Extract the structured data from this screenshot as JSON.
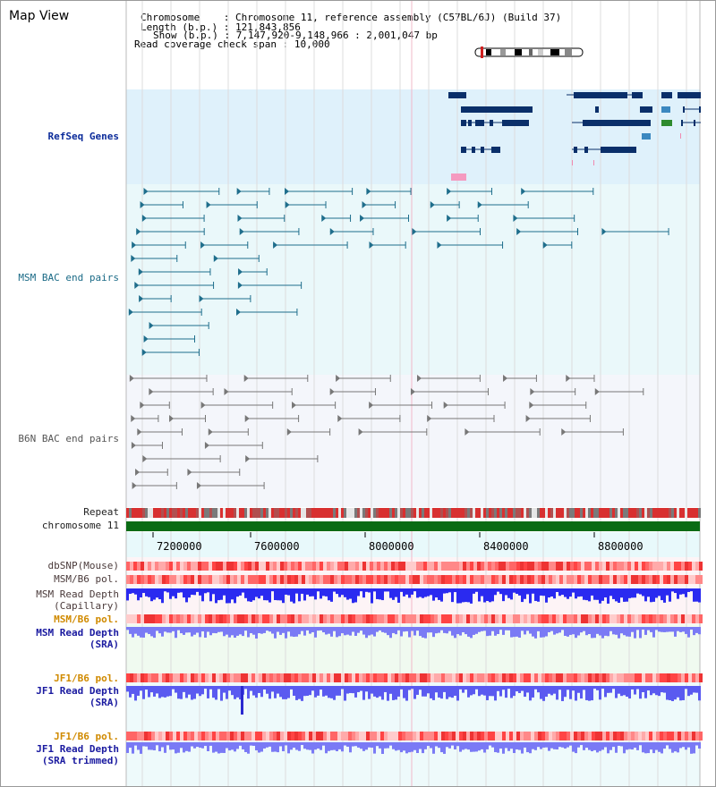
{
  "header": {
    "title": "Map View",
    "chromosome_key": "Chromosome",
    "chromosome_value": "Chromosome 11, reference assembly (C57BL/6J) (Build 37)",
    "length_key": "Length (b.p.)",
    "length_value": "121,843,856",
    "show_key": "Show (b.p.)",
    "show_value": "7,147,920-9,148,966 : 2,001,047 bp",
    "coverage_key": "Read coverage check span",
    "coverage_value": "10,000"
  },
  "tracks": {
    "refseq": "RefSeq Genes",
    "msm_bac": "MSM BAC end pairs",
    "b6n_bac": "B6N BAC end pairs",
    "repeat": "Repeat",
    "chromosome": "chromosome 11",
    "dbsnp": "dbSNP(Mouse)",
    "msm_b6_pol_1": "MSM/B6 pol.",
    "msm_depth_cap_1": "MSM Read Depth",
    "msm_depth_cap_2": "(Capillary)",
    "msm_b6_pol_2": "MSM/B6 pol.",
    "msm_depth_sra_1": "MSM Read Depth",
    "msm_depth_sra_2": "(SRA)",
    "jf1_b6_pol_1": "JF1/B6 pol.",
    "jf1_depth_sra_1": "JF1 Read Depth",
    "jf1_depth_sra_2": "(SRA)",
    "jf1_b6_pol_2": "JF1/B6 pol.",
    "jf1_depth_trim_1": "JF1 Read Depth",
    "jf1_depth_trim_2": "(SRA trimmed)"
  },
  "axis": {
    "ticks": [
      "7200000",
      "7600000",
      "8000000",
      "8400000",
      "8800000"
    ]
  },
  "colors": {
    "refseq_bg": "#dff1fb",
    "bac_bg": "#eaf8fa",
    "b6n_bg": "#f4f6fb",
    "gene_dark": "#0a2f6a",
    "msm_teal": "#1f6e8c",
    "b6n_gray": "#777777",
    "chromosome_green": "#0a6b14",
    "depth_blue": "#2a2af0",
    "depth_light": "#7a7af5",
    "pol_red": "#f03a3a"
  }
}
